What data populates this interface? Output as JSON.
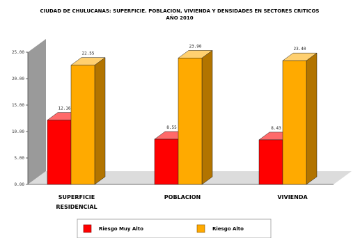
{
  "chart_data": {
    "type": "bar",
    "title_lines": [
      "CIUDAD DE CHULUCANAS: SUPERFICIE. POBLACION, VIVIENDA Y DENSIDADES EN SECTORES CRITICOS",
      "AÑO 2010"
    ],
    "categories": [
      [
        "SUPERFICIE",
        "RESIDENCIAL"
      ],
      [
        "POBLACION"
      ],
      [
        "VIVIENDA"
      ]
    ],
    "series": [
      {
        "name": "Riesgo Muy Alto",
        "color": "#ff0000",
        "side_color": "#a30000",
        "top_color": "#ff6a6a",
        "values": [
          12.16,
          8.55,
          8.43
        ],
        "labels": [
          "12.16",
          "8.55",
          "8.43"
        ]
      },
      {
        "name": "Riesgo Alto",
        "color": "#ffaa00",
        "side_color": "#b27400",
        "top_color": "#ffd070",
        "values": [
          22.55,
          23.9,
          23.4
        ],
        "labels": [
          "22.55",
          "23.90",
          "23.40"
        ]
      }
    ],
    "ylim": [
      0,
      25
    ],
    "yticks": [
      "0.00",
      "5.00",
      "10.00",
      "15.00",
      "20.00",
      "25.00"
    ],
    "grid": false,
    "legend_position": "bottom"
  }
}
